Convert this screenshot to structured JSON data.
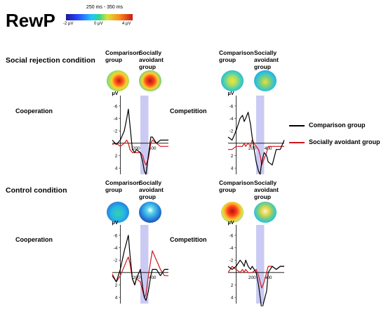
{
  "title": "RewP",
  "colorbar": {
    "time_window": "250 ms - 350 ms",
    "min_label": "-2 μV",
    "mid_label": "0 μV",
    "max_label": "4 μV"
  },
  "sections": {
    "social_rejection": "Social rejection condition",
    "control": "Control condition"
  },
  "group_labels": {
    "comparison": [
      "Comparison",
      "group"
    ],
    "avoidant": [
      "Socially",
      "avoidant",
      "group"
    ]
  },
  "conditions": {
    "cooperation": "Cooperation",
    "competition": "Competition"
  },
  "legend": {
    "items": [
      {
        "label": "Comparison group",
        "color": "#000000"
      },
      {
        "label": "Socially avoidant group",
        "color": "#d0161b"
      }
    ]
  },
  "axis": {
    "unit": "μV",
    "y_ticks": [
      "-6",
      "-4",
      "-2",
      "2",
      "4"
    ],
    "x_ticks": [
      "200",
      "400"
    ]
  },
  "colors": {
    "window": "#b8b8f0",
    "comparison": "#000000",
    "avoidant": "#d0161b"
  },
  "chart_data": [
    {
      "type": "line",
      "title": "Social rejection condition - Cooperation",
      "xlabel": "",
      "ylabel": "μV",
      "xlim": [
        -100,
        600
      ],
      "ylim": [
        -7,
        5
      ],
      "y_inverted": true,
      "highlight_window_ms": [
        250,
        350
      ],
      "x": [
        -100,
        -50,
        0,
        50,
        80,
        100,
        120,
        150,
        180,
        200,
        250,
        280,
        300,
        320,
        350,
        380,
        400,
        450,
        500,
        550,
        600
      ],
      "series": [
        {
          "name": "Comparison group",
          "values": [
            -0.5,
            0.2,
            -0.5,
            -2,
            -4,
            -5.5,
            -3,
            1,
            1.5,
            1,
            1.5,
            3,
            4.5,
            5,
            2,
            -1,
            -1,
            0,
            -0.5,
            -0.5,
            -0.5
          ]
        },
        {
          "name": "Socially avoidant group",
          "values": [
            0.2,
            0,
            0.5,
            0,
            -0.5,
            0,
            1,
            1.5,
            1.5,
            1.5,
            1.5,
            2,
            3,
            3.5,
            2.5,
            0,
            -0.5,
            0,
            0.5,
            0.5,
            0.5
          ]
        }
      ]
    },
    {
      "type": "line",
      "title": "Social rejection condition - Competition",
      "xlabel": "",
      "ylabel": "μV",
      "xlim": [
        -100,
        600
      ],
      "ylim": [
        -7,
        5
      ],
      "y_inverted": true,
      "highlight_window_ms": [
        250,
        350
      ],
      "x": [
        -100,
        -50,
        0,
        50,
        80,
        100,
        120,
        150,
        180,
        200,
        250,
        280,
        300,
        320,
        350,
        380,
        400,
        450,
        500,
        550,
        600
      ],
      "series": [
        {
          "name": "Comparison group",
          "values": [
            -1,
            -0.5,
            -2,
            -4,
            -4.5,
            -3.5,
            -4,
            -5,
            -3,
            -1,
            3,
            4.5,
            5,
            3,
            1.5,
            2,
            3,
            3.5,
            1,
            1,
            -0.5
          ]
        },
        {
          "name": "Socially avoidant group",
          "values": [
            1,
            1,
            0.5,
            0.5,
            0.5,
            0,
            0.5,
            0,
            0.5,
            -0.5,
            0.5,
            1,
            2,
            3.5,
            2.5,
            1.5,
            0.5,
            0.5,
            0.5,
            0.5,
            0.5
          ]
        }
      ]
    },
    {
      "type": "line",
      "title": "Control condition - Cooperation",
      "xlabel": "",
      "ylabel": "μV",
      "xlim": [
        -100,
        600
      ],
      "ylim": [
        -7,
        5
      ],
      "y_inverted": true,
      "highlight_window_ms": [
        250,
        350
      ],
      "x": [
        -100,
        -50,
        0,
        50,
        80,
        100,
        120,
        150,
        180,
        200,
        250,
        280,
        300,
        320,
        350,
        380,
        400,
        450,
        500,
        550,
        600
      ],
      "series": [
        {
          "name": "Comparison group",
          "values": [
            0.5,
            1.5,
            -0.5,
            -3.5,
            -5,
            -6,
            -3,
            1,
            2,
            1,
            -0.5,
            2.5,
            4,
            4.5,
            3,
            0.5,
            -0.5,
            -0.5,
            0.5,
            -0.5,
            -0.5
          ]
        },
        {
          "name": "Socially avoidant group",
          "values": [
            0.2,
            1.5,
            0.5,
            -1,
            -2,
            -2.5,
            -1.5,
            1,
            2,
            1,
            1.5,
            3,
            4,
            3.5,
            0.5,
            -2,
            -3.5,
            -2,
            -0.5,
            0.5,
            0.5
          ]
        }
      ]
    },
    {
      "type": "line",
      "title": "Control condition - Competition",
      "xlabel": "",
      "ylabel": "μV",
      "xlim": [
        -100,
        600
      ],
      "ylim": [
        -7,
        5
      ],
      "y_inverted": true,
      "highlight_window_ms": [
        250,
        350
      ],
      "x": [
        -100,
        -50,
        0,
        50,
        80,
        100,
        120,
        150,
        180,
        200,
        250,
        280,
        300,
        320,
        350,
        380,
        400,
        450,
        500,
        550,
        600
      ],
      "series": [
        {
          "name": "Comparison group",
          "values": [
            -1,
            -0.5,
            -1,
            -2,
            -1.5,
            -1,
            -2,
            -1,
            -0.5,
            -1,
            0,
            2,
            4,
            6,
            4.5,
            3,
            0,
            -1,
            -0.5,
            -1,
            -1
          ]
        },
        {
          "name": "Socially avoidant group",
          "values": [
            0,
            -1,
            -0.5,
            0,
            -0.5,
            0,
            -0.5,
            0,
            0,
            0,
            -0.5,
            0.5,
            1.5,
            2.5,
            1.5,
            0,
            -1,
            -1,
            -0.5,
            -1,
            -1
          ]
        }
      ]
    }
  ]
}
